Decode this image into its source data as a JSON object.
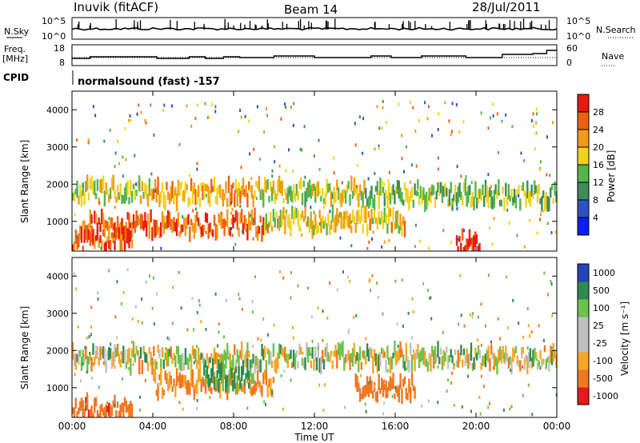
{
  "header": {
    "station": "Inuvik (fitACF)",
    "beam": "Beam 14",
    "date": "28/Jul/2011"
  },
  "nsky_panel": {
    "left_label": "N.Sky",
    "left_ticks": [
      "10^5",
      "10^0"
    ],
    "right_label": "N.Search",
    "right_ticks": [
      "10^5",
      "10^0"
    ]
  },
  "freq_panel": {
    "left_label_1": "Freq.",
    "left_label_2": "[MHz]",
    "left_ticks": [
      "18",
      "8"
    ],
    "right_label": "Nave",
    "right_ticks": [
      "60",
      "0"
    ]
  },
  "cpid": {
    "label": "CPID",
    "value": "normalsound (fast) -157"
  },
  "x_axis": {
    "ticks": [
      "00:00",
      "04:00",
      "08:00",
      "12:00",
      "16:00",
      "20:00",
      "00:00"
    ],
    "label": "Time UT"
  },
  "colors": {
    "power_scale": [
      "#0b1ff0",
      "#2a52c4",
      "#3e8b5c",
      "#54b54c",
      "#f2d21c",
      "#f39a18",
      "#ee6010",
      "#e81a10"
    ],
    "velocity_scale": [
      "#e41a1c",
      "#f07820",
      "#f5a623",
      "#c0c0c0",
      "#c0c0c0",
      "#6cc24a",
      "#2f8a4f",
      "#2246b8"
    ]
  },
  "chart_data": [
    {
      "type": "heatmap",
      "name": "power",
      "ylabel": "Slant Range [km]",
      "yticks": [
        "1000",
        "2000",
        "3000",
        "4000"
      ],
      "ylim": [
        200,
        4500
      ],
      "colorbar_label": "Power [dB]",
      "colorbar_ticks": [
        "4",
        "8",
        "12",
        "16",
        "20",
        "24",
        "28"
      ],
      "colorbar_range": [
        0,
        30
      ],
      "bands": [
        {
          "t0": 0.0,
          "t1": 4.0,
          "range": 1800,
          "level": 16
        },
        {
          "t0": 4.0,
          "t1": 9.0,
          "range": 1750,
          "level": 20
        },
        {
          "t0": 9.0,
          "t1": 14.5,
          "range": 1800,
          "level": 16
        },
        {
          "t0": 14.5,
          "t1": 24.0,
          "range": 1700,
          "level": 14
        },
        {
          "t0": 0.5,
          "t1": 9.5,
          "range": 900,
          "level": 24
        },
        {
          "t0": 9.5,
          "t1": 16.5,
          "range": 1000,
          "level": 18
        },
        {
          "t0": 0.0,
          "t1": 3.0,
          "range": 500,
          "level": 26
        },
        {
          "t0": 19.0,
          "t1": 20.2,
          "range": 400,
          "level": 28
        }
      ]
    },
    {
      "type": "heatmap",
      "name": "velocity",
      "ylabel": "Slant Range [km]",
      "yticks": [
        "1000",
        "2000",
        "3000",
        "4000"
      ],
      "ylim": [
        200,
        4500
      ],
      "colorbar_label": "Velocity [m s⁻¹]",
      "colorbar_ticks": [
        "1000",
        "500",
        "100",
        "25",
        "-25",
        "-100",
        "-500",
        "-1000"
      ],
      "bands": [
        {
          "t0": 0.0,
          "t1": 24.0,
          "range": 1800,
          "value": 0
        },
        {
          "t0": 4.0,
          "t1": 10.0,
          "range": 1100,
          "value": -150
        },
        {
          "t0": 6.5,
          "t1": 9.0,
          "range": 1300,
          "value": 150
        },
        {
          "t0": 14.0,
          "t1": 17.0,
          "range": 1000,
          "value": -300
        },
        {
          "t0": 0.0,
          "t1": 3.0,
          "range": 400,
          "value": -400
        }
      ]
    }
  ]
}
